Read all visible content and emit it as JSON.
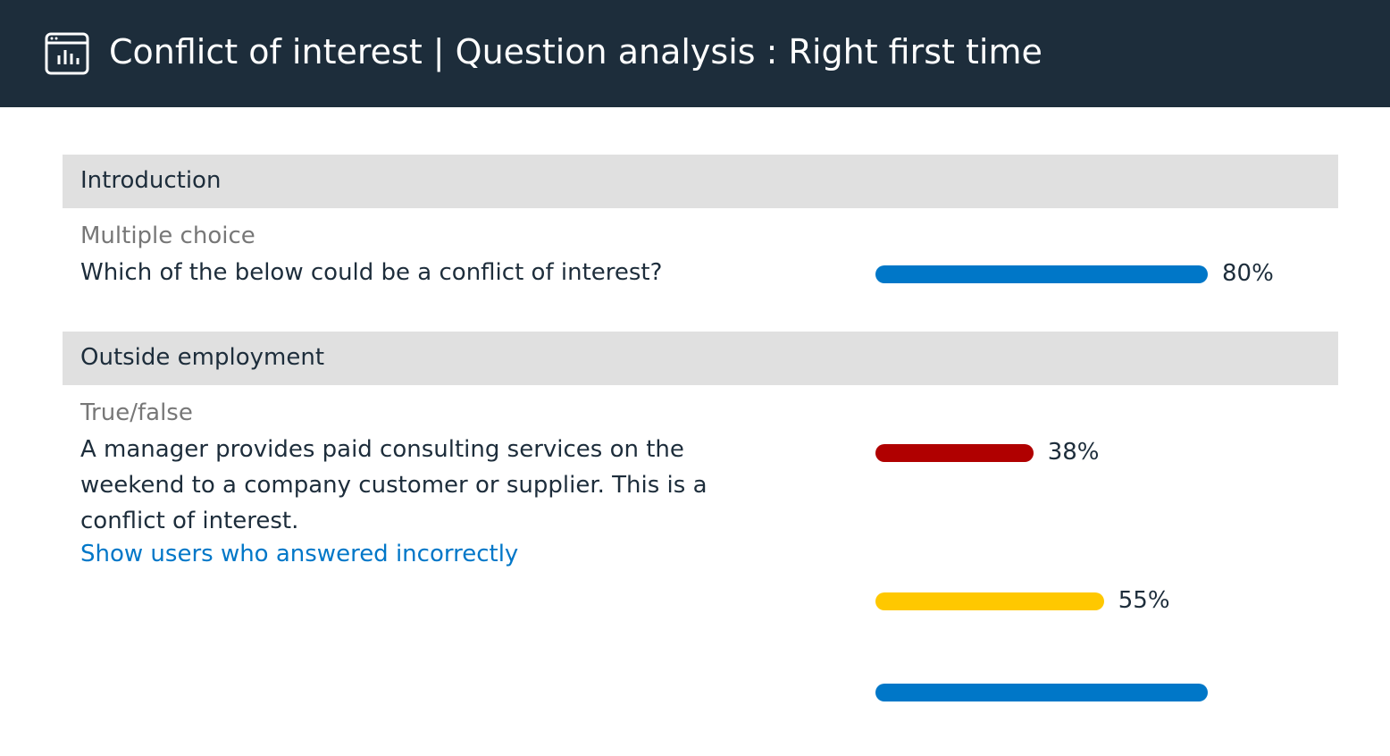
{
  "header": {
    "title": "Conflict of interest | Question analysis : Right first time"
  },
  "sections": [
    {
      "title": "Introduction",
      "questions": [
        {
          "type": "Multiple choice",
          "text": "Which of the below could be a conflict of interest?",
          "bars": [
            {
              "value": 80,
              "label": "80%",
              "color": "#0077c8"
            }
          ]
        }
      ]
    },
    {
      "title": "Outside employment",
      "questions": [
        {
          "type": "True/false",
          "text": "A manager provides paid consulting services on the weekend to a company customer or supplier. This is a conflict of interest.",
          "link": "Show users who answered incorrectly",
          "bars": [
            {
              "value": 38,
              "label": "38%",
              "color": "#b00000"
            },
            {
              "value": 55,
              "label": "55%",
              "color": "#ffc800"
            },
            {
              "value": 80,
              "color": "#0077c8"
            }
          ]
        }
      ]
    }
  ]
}
